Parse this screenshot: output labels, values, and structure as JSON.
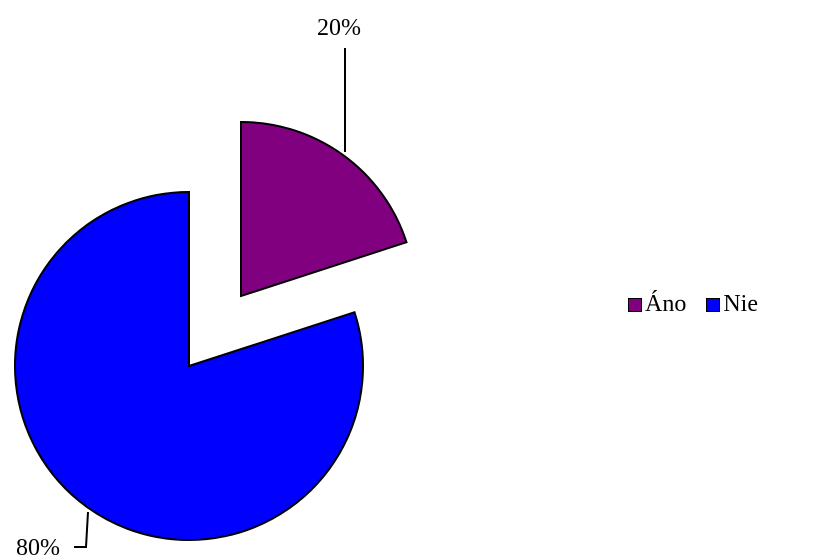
{
  "chart_data": {
    "type": "pie",
    "categories": [
      "Áno",
      "Nie"
    ],
    "values": [
      20,
      80
    ],
    "data_labels": [
      "20%",
      "80%"
    ],
    "colors": [
      "#800080",
      "#0000ff"
    ],
    "exploded": true,
    "legend_position": "right"
  }
}
